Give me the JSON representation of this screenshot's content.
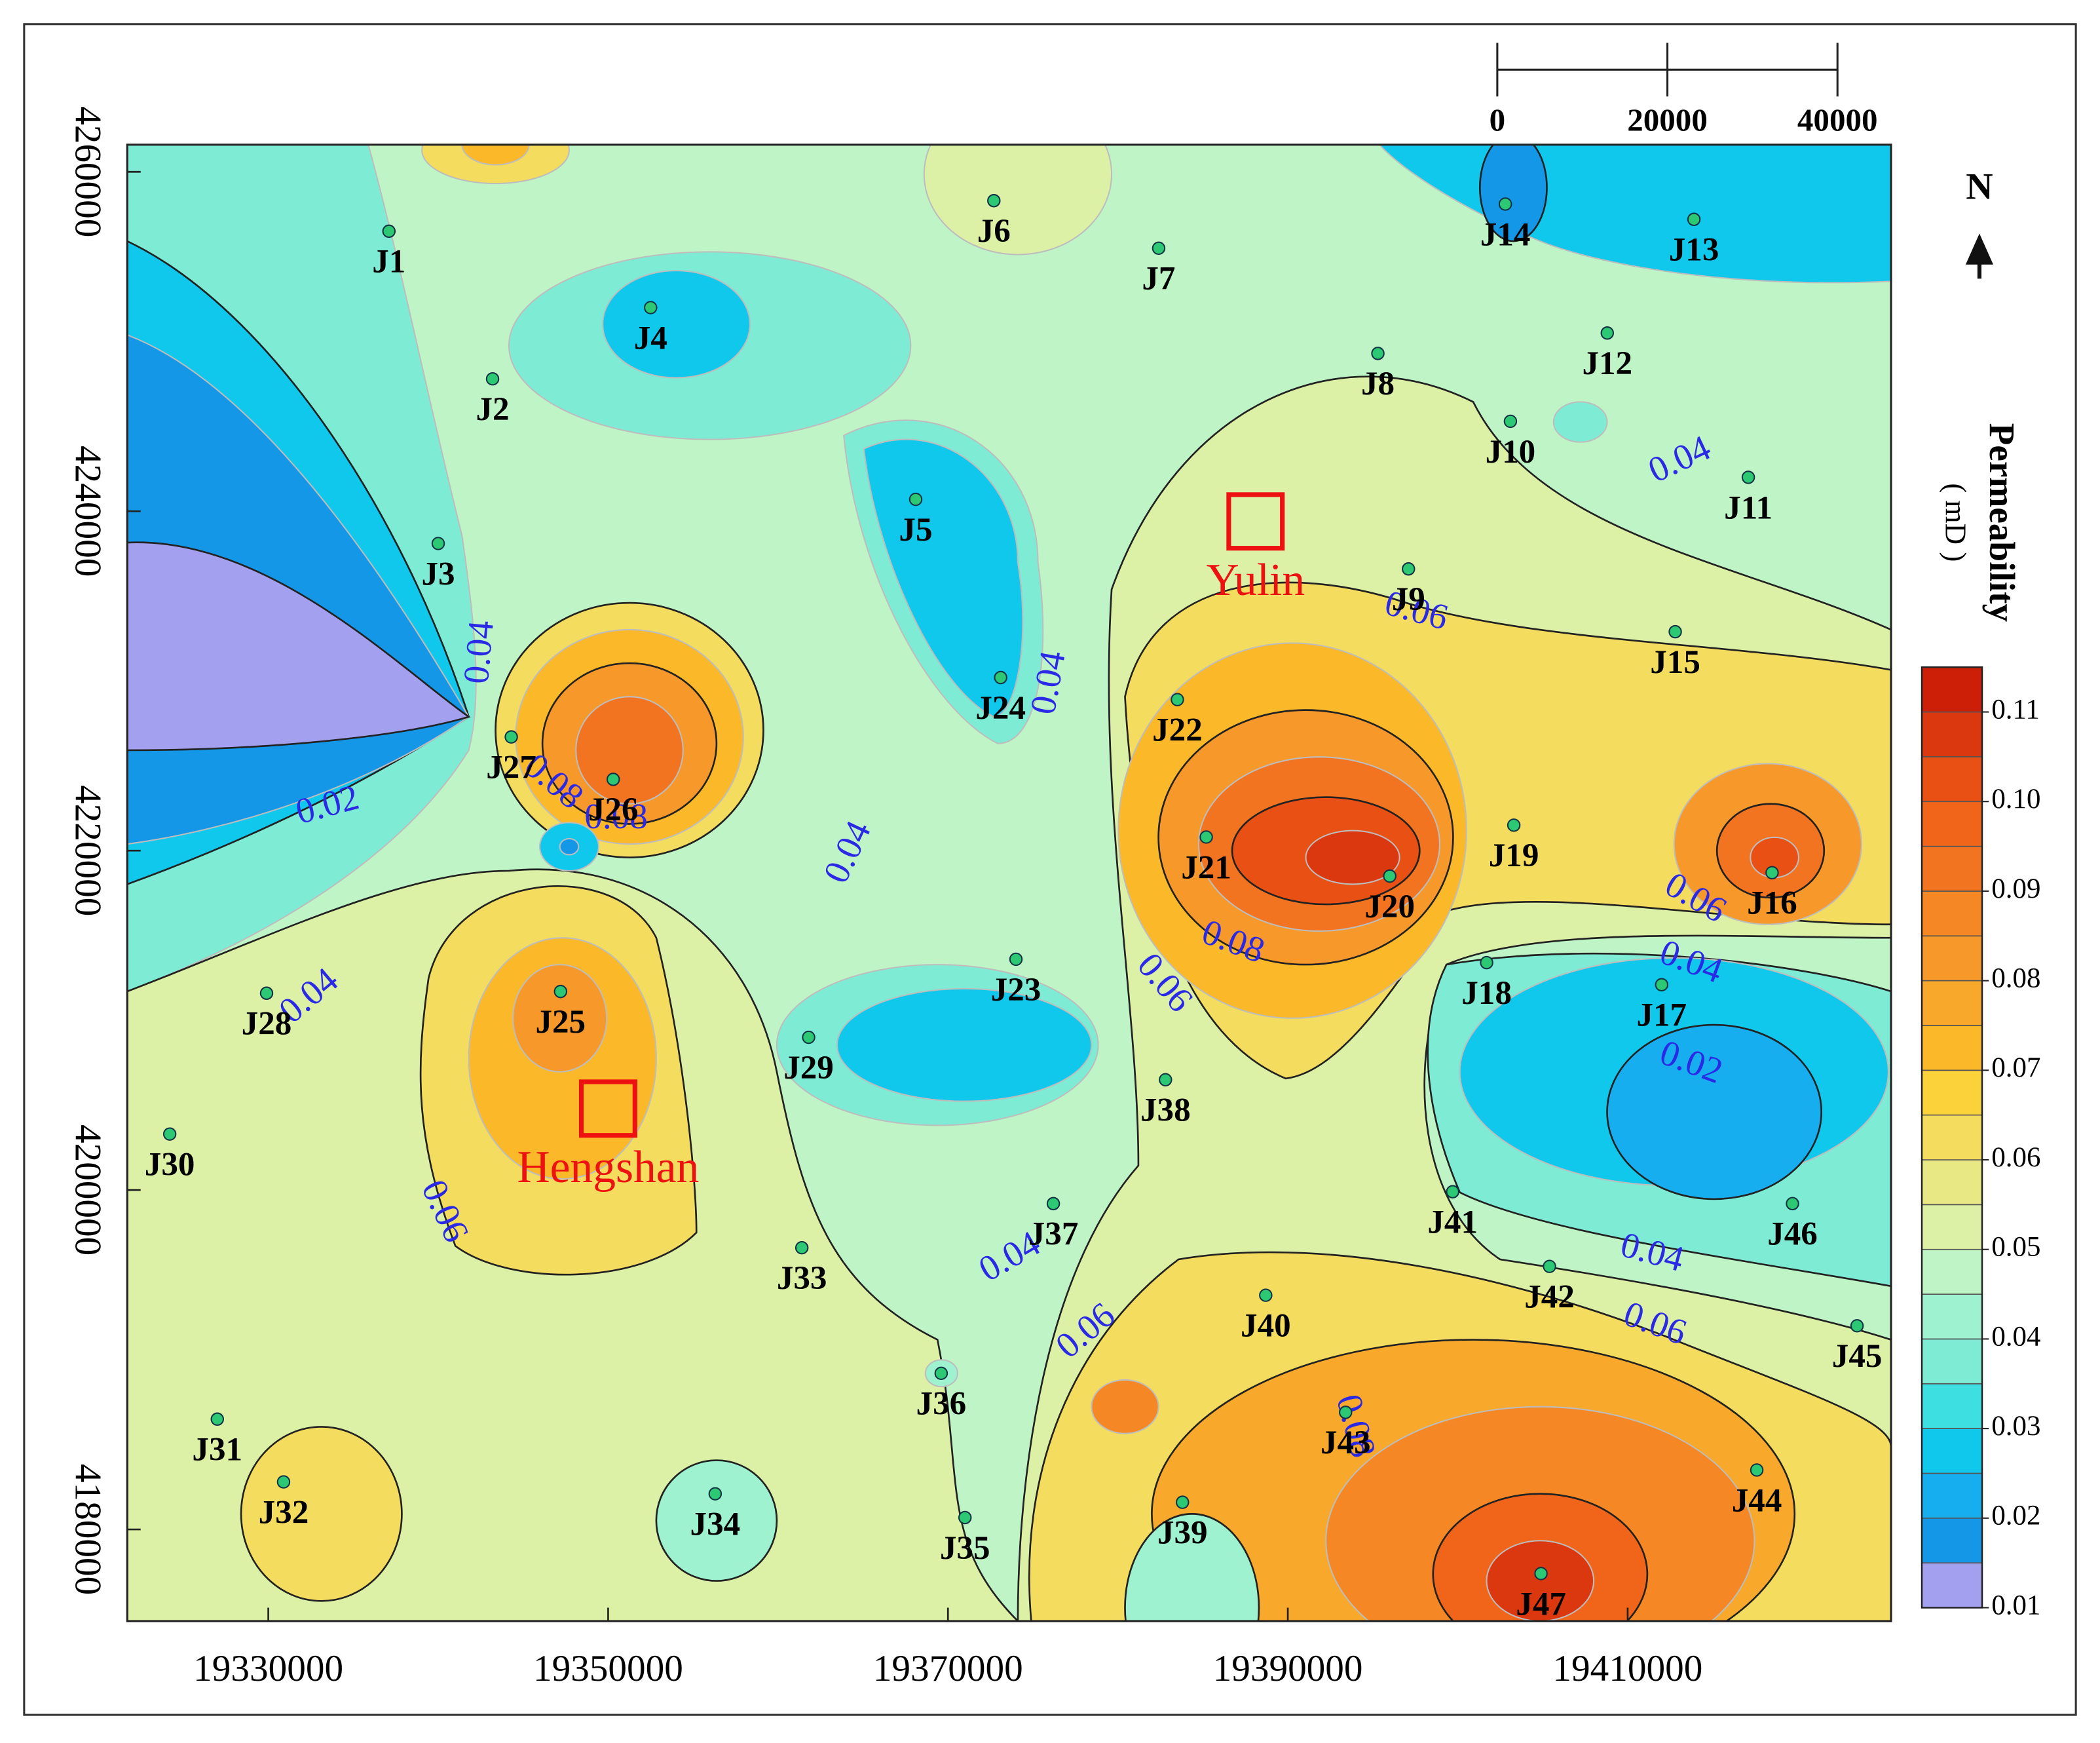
{
  "chart_data": {
    "type": "scatter",
    "xlim": [
      19321700,
      19425500
    ],
    "ylim": [
      4174600,
      4261600
    ],
    "xticks": [
      19330000,
      19350000,
      19370000,
      19390000,
      19410000
    ],
    "yticks": [
      4180000,
      4200000,
      4220000,
      4240000,
      4260000
    ],
    "color": "#2dc873",
    "labels": [
      "J1",
      "J2",
      "J3",
      "J4",
      "J5",
      "J6",
      "J7",
      "J8",
      "J9",
      "J10",
      "J11",
      "J12",
      "J13",
      "J14",
      "J15",
      "J16",
      "J17",
      "J18",
      "J19",
      "J20",
      "J21",
      "J22",
      "J23",
      "J24",
      "J25",
      "J26",
      "J27",
      "J28",
      "J29",
      "J30",
      "J31",
      "J32",
      "J33",
      "J34",
      "J35",
      "J36",
      "J37",
      "J38",
      "J39",
      "J40",
      "J41",
      "J42",
      "J43",
      "J44",
      "J45",
      "J46",
      "J47"
    ],
    "x": [
      19337100,
      19343200,
      19340000,
      19352500,
      19368100,
      19372700,
      19382400,
      19395300,
      19397100,
      19403100,
      19417100,
      19408800,
      19413900,
      19402800,
      19412800,
      19418500,
      19412000,
      19401700,
      19403300,
      19396000,
      19385200,
      19383500,
      19374000,
      19373100,
      19347200,
      19350300,
      19344300,
      19329900,
      19361800,
      19324200,
      19327000,
      19330900,
      19361400,
      19356300,
      19371000,
      19369600,
      19376200,
      19382800,
      19383800,
      19388700,
      19399700,
      19405400,
      19393400,
      19417600,
      19423500,
      19419700,
      19404900
    ],
    "values": [
      4256500,
      4247800,
      4238100,
      4252000,
      4240700,
      4258300,
      4255500,
      4249300,
      4236600,
      4245300,
      4242000,
      4250500,
      4257200,
      4258100,
      4232900,
      4218700,
      4212100,
      4213400,
      4221500,
      4218500,
      4220800,
      4228900,
      4213600,
      4230200,
      4211700,
      4224200,
      4226700,
      4211600,
      4209000,
      4203300,
      4186500,
      4182800,
      4196600,
      4182100,
      4180700,
      4189200,
      4199200,
      4206500,
      4181600,
      4193800,
      4199900,
      4195500,
      4186900,
      4183500,
      4192000,
      4199200,
      4177400
    ],
    "places": [
      {
        "name": "Yulin",
        "x": 19388100,
        "y": 4239400
      },
      {
        "name": "Hengshan",
        "x": 19350000,
        "y": 4204800
      }
    ],
    "contour_labels": [
      0.02,
      0.04,
      0.08,
      0.08,
      0.04,
      0.04,
      0.04,
      0.06,
      0.04,
      0.06,
      0.06,
      0.08,
      0.06,
      0.04,
      0.06,
      0.04,
      0.02,
      0.04,
      0.06,
      0.08
    ],
    "colorbar": {
      "title": "Permeability",
      "unit": "( mD )",
      "lim": [
        0.01,
        0.115
      ],
      "ticks": [
        0.01,
        0.02,
        0.03,
        0.04,
        0.05,
        0.06,
        0.07,
        0.08,
        0.09,
        {
          "value": 0.1,
          "label": "0.10"
        },
        0.11
      ],
      "colors": [
        "#a3a0f0",
        "#1597e8",
        "#17aef0",
        "#10c8ec",
        "#3ddfe0",
        "#7eecd4",
        "#9ef2cf",
        "#bff5c6",
        "#dcf0a6",
        "#e8e885",
        "#f4dc5e",
        "#fbd23a",
        "#fbb929",
        "#f8a82a",
        "#f7982a",
        "#f58724",
        "#f37420",
        "#f1651a",
        "#e95014",
        "#dc3810",
        "#cd1e08"
      ]
    },
    "scale_bar": [
      0,
      20000,
      40000
    ],
    "north": "N"
  }
}
